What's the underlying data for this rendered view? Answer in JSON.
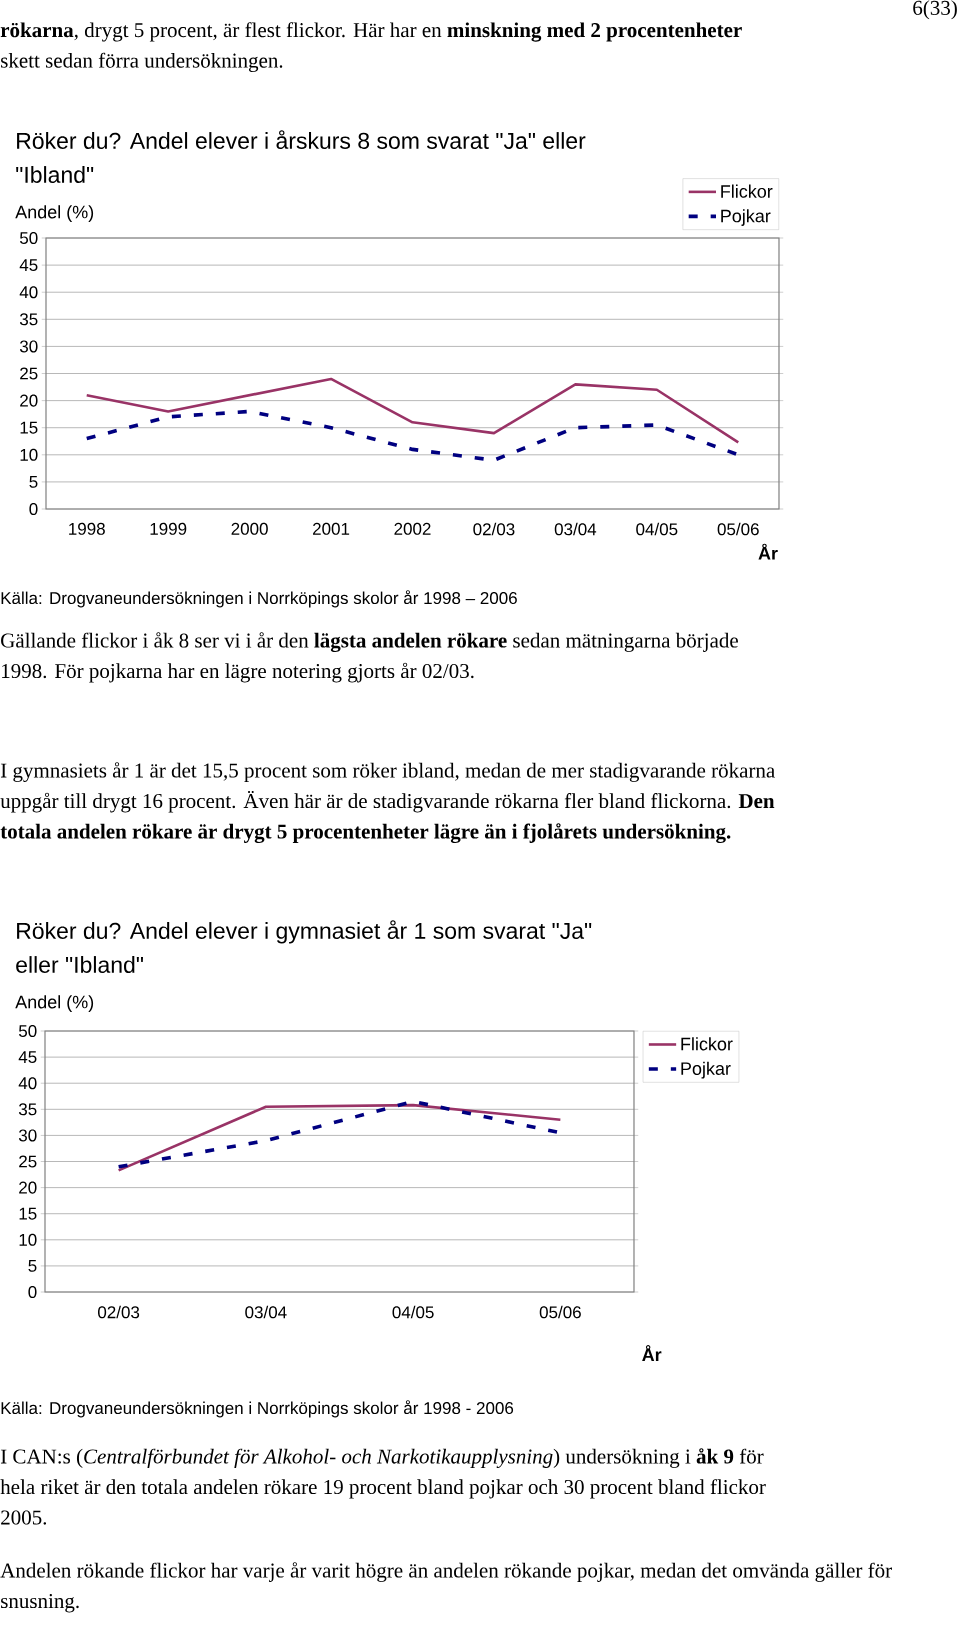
{
  "chart_data": [
    {
      "type": "line",
      "title": "Röker du? Andel elever i årskurs 8 som svarat \"Ja\" eller \"Ibland\"",
      "ylabel": "Andel (%)",
      "xlabel": "År",
      "categories": [
        "1998",
        "1999",
        "2000",
        "2001",
        "2002",
        "02/03",
        "03/04",
        "04/05",
        "05/06"
      ],
      "series": [
        {
          "name": "Flickor",
          "color": "#993366",
          "line_style": "solid",
          "values": [
            21,
            18,
            21,
            24,
            16,
            14,
            23,
            22,
            12.3
          ]
        },
        {
          "name": "Pojkar",
          "color": "#000080",
          "line_style": "dashed",
          "values": [
            13,
            17,
            18,
            15,
            11,
            9,
            15,
            15.5,
            10
          ]
        }
      ],
      "ylim": [
        0,
        50
      ],
      "yticks": [
        0,
        5,
        10,
        15,
        20,
        25,
        30,
        35,
        40,
        45,
        50
      ],
      "grid": "y",
      "legend": "top right",
      "annotations": [
        "**rökarna**, drygt 5  procent, är flest flickor. Här har en **minskning med 2 procentenheter** skett sedan förra undersökningen.",
        "6(33)",
        "Källa: Drogvaneundersökningen i Norrköpings skolor år 1998 – 2006",
        "Gällande flickor i åk 8 ser vi i år den **lägsta andelen rökare** sedan mätningarna började 1998. För pojkarna har en lägre notering gjorts år 02/03."
      ]
    },
    {
      "type": "line",
      "title": "Röker du? Andel elever i gymnasiet år 1 som svarat \"Ja\" eller \"Ibland\"",
      "ylabel": "Andel (%)",
      "xlabel": "År",
      "categories": [
        "02/03",
        "03/04",
        "04/05",
        "05/06"
      ],
      "series": [
        {
          "name": "Flickor",
          "color": "#993366",
          "line_style": "solid",
          "values": [
            23.3,
            35.5,
            35.8,
            33
          ]
        },
        {
          "name": "Pojkar",
          "color": "#000080",
          "line_style": "dashed",
          "values": [
            24,
            29,
            36.5,
            30.5
          ]
        }
      ],
      "ylim": [
        0,
        50
      ],
      "yticks": [
        0,
        5,
        10,
        15,
        20,
        25,
        30,
        35,
        40,
        45,
        50
      ],
      "grid": "y",
      "legend": "right",
      "annotations": [
        "I gymnasiets år 1 är det 15,5 procent som röker ibland, medan de mer stadigvarande rökarna uppgår till drygt 16 procent. Även här är de stadigvarande rökarna fler bland flickorna. **Den totala andelen rökare är drygt 5 procentenheter lägre än i fjolårets undersökning.**",
        "Källa: Drogvaneundersökningen i Norrköpings skolor år 1998 - 2006",
        "I CAN:s (*Centralförbundet för Alkohol- och Narkotikaupplysning*) undersökning i **åk 9** för hela riket är den totala andelen rökare 19 procent bland pojkar och 30 procent bland flickor 2005.",
        "Andelen rökande flickor har varje år varit högre än andelen rökande pojkar, medan det omvända gäller för snusning."
      ]
    }
  ]
}
